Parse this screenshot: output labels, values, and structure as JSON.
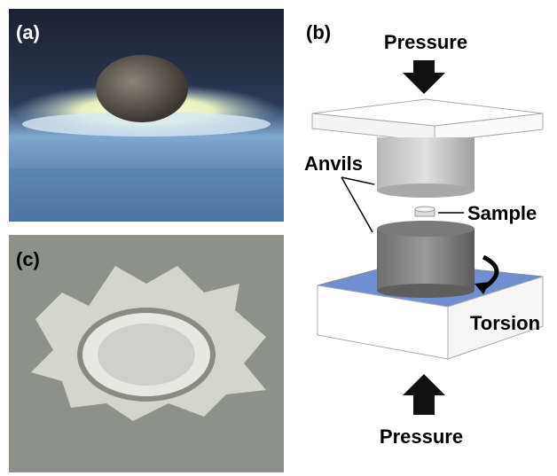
{
  "panels": [
    {
      "label": "(a)"
    },
    {
      "label": "(b)"
    },
    {
      "label": "(c)"
    }
  ],
  "diagram": {
    "pressure_top": "Pressure",
    "anvils": "Anvils",
    "sample": "Sample",
    "torsion": "Torsion",
    "pressure_bottom": "Pressure"
  }
}
